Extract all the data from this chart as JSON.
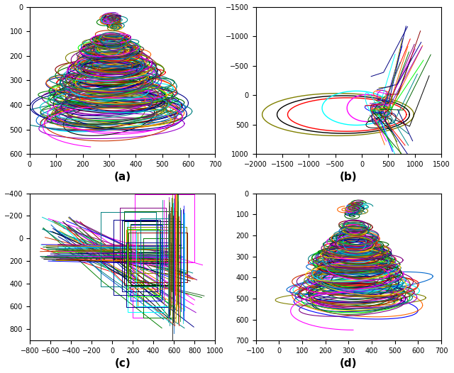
{
  "fig_width": 6.4,
  "fig_height": 5.26,
  "dpi": 100,
  "background": "white",
  "subplots": {
    "a": {
      "xlim": [
        0,
        700
      ],
      "ylim": [
        600,
        0
      ],
      "label": "(a)",
      "xticks": [
        0,
        100,
        200,
        300,
        400,
        500,
        600,
        700
      ],
      "yticks": [
        0,
        100,
        200,
        300,
        400,
        500,
        600
      ]
    },
    "b": {
      "xlim": [
        -2000,
        1500
      ],
      "ylim": [
        1000,
        -1500
      ],
      "label": "(b)",
      "xticks": [
        -2000,
        -1500,
        -1000,
        -500,
        0,
        500,
        1000,
        1500
      ],
      "yticks": [
        -1500,
        -1000,
        -500,
        0,
        500,
        1000
      ]
    },
    "c": {
      "xlim": [
        -800,
        1000
      ],
      "ylim": [
        900,
        -400
      ],
      "label": "(c)",
      "xticks": [
        -800,
        -600,
        -400,
        -200,
        0,
        200,
        400,
        600,
        800,
        1000
      ],
      "yticks": [
        -400,
        -200,
        0,
        200,
        400,
        600,
        800
      ]
    },
    "d": {
      "xlim": [
        -100,
        700
      ],
      "ylim": [
        700,
        0
      ],
      "label": "(d)",
      "xticks": [
        -100,
        0,
        100,
        200,
        300,
        400,
        500,
        600,
        700
      ],
      "yticks": [
        0,
        100,
        200,
        300,
        400,
        500,
        600,
        700
      ]
    }
  },
  "colors": [
    "blue",
    "red",
    "green",
    "cyan",
    "magenta",
    "#808000",
    "black",
    "#00008B",
    "#006400",
    "#008080",
    "#FF6600",
    "#800080",
    "#00FF00",
    "#008B8B",
    "#000080",
    "#8B0000",
    "#006400",
    "#00008B",
    "#FF6600",
    "#9900CC",
    "#336633",
    "#CC3300",
    "#0066CC",
    "#FFCC00",
    "#00CCCC",
    "#FF00FF",
    "#808000",
    "#800080",
    "#008080",
    "#404040"
  ]
}
